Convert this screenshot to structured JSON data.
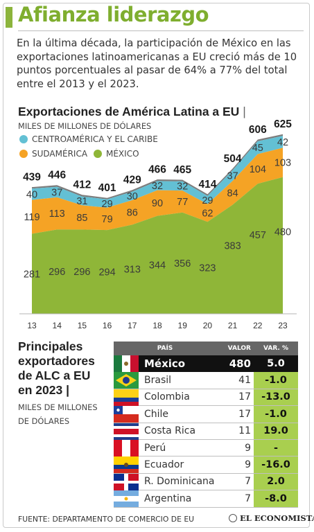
{
  "header": {
    "title": "Afianza liderazgo",
    "intro_lines": [
      "En la última década, la participación de México en las",
      "exportaciones latinoamericanas a EU creció más de 10",
      "puntos porcentuales al pasar de 64% a 77% del total",
      "entre el 2013 y el 2023."
    ]
  },
  "chart_data": {
    "type": "area",
    "title": "Exportaciones de América Latina a EU",
    "unit": "MILES DE MILLONES DE DÓLARES",
    "x": [
      "13",
      "14",
      "15",
      "16",
      "17",
      "18",
      "19",
      "20",
      "21",
      "22",
      "23"
    ],
    "stacked": true,
    "legend_placement": "top-left",
    "series": [
      {
        "name": "MÉXICO",
        "color": "#8fb638",
        "values": [
          281,
          296,
          296,
          294,
          313,
          344,
          356,
          323,
          383,
          457,
          480
        ]
      },
      {
        "name": "SUDAMÉRICA",
        "color": "#f5a325",
        "values": [
          119,
          113,
          85,
          79,
          86,
          90,
          77,
          62,
          84,
          104,
          103
        ]
      },
      {
        "name": "CENTROAMÉRICA Y EL CARIBE",
        "color": "#63c0d4",
        "values": [
          40,
          37,
          31,
          29,
          30,
          32,
          32,
          29,
          37,
          45,
          42
        ]
      }
    ],
    "totals": [
      439,
      446,
      412,
      401,
      429,
      466,
      465,
      414,
      504,
      606,
      625
    ],
    "legend_order": [
      "CENTROAMÉRICA Y EL CARIBE",
      "SUDAMÉRICA",
      "MÉXICO"
    ],
    "ylim": [
      0,
      640
    ],
    "total_line_color": "#7d7d7d"
  },
  "table": {
    "title_lines": [
      "Principales",
      "exportadores",
      "de ALC a EU",
      "en 2023 |"
    ],
    "unit_lines": [
      "MILES DE MILLONES",
      "DE DÓLARES"
    ],
    "headers": {
      "country": "PAÍS",
      "value": "VALOR",
      "change": "VAR. %"
    },
    "rows": [
      {
        "country": "México",
        "value": "480",
        "change": "5.0",
        "flag": "mexico-flag"
      },
      {
        "country": "Brasil",
        "value": "41",
        "change": "-1.0",
        "flag": "brazil-flag"
      },
      {
        "country": "Colombia",
        "value": "17",
        "change": "-13.0",
        "flag": "colombia-flag"
      },
      {
        "country": "Chile",
        "value": "17",
        "change": "-1.0",
        "flag": "chile-flag"
      },
      {
        "country": "Costa Rica",
        "value": "11",
        "change": "19.0",
        "flag": "costa-rica-flag"
      },
      {
        "country": "Perú",
        "value": "9",
        "change": "-",
        "flag": "peru-flag"
      },
      {
        "country": "Ecuador",
        "value": "9",
        "change": "-16.0",
        "flag": "ecuador-flag"
      },
      {
        "country": "R. Dominicana",
        "value": "7",
        "change": "2.0",
        "flag": "dominican-republic-flag"
      },
      {
        "country": "Argentina",
        "value": "7",
        "change": "-8.0",
        "flag": "argentina-flag"
      }
    ]
  },
  "footer": {
    "source": "FUENTE: DEPARTAMENTO DE COMERCIO DE EU",
    "brand": "EL ECONOMISTA"
  }
}
